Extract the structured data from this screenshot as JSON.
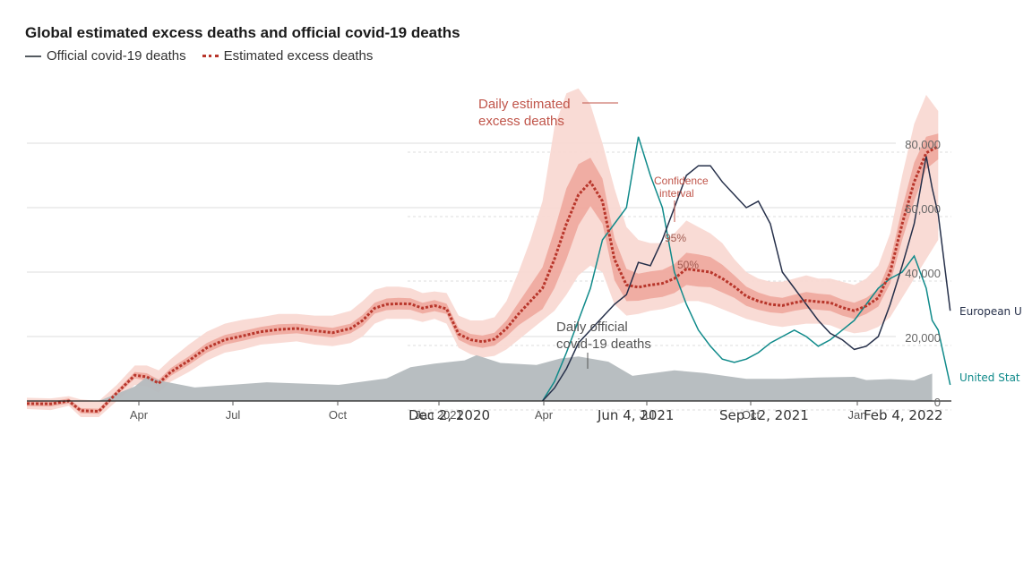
{
  "title": "Global estimated excess deaths and official covid-19 deaths",
  "legend": {
    "official": "Official covid-19 deaths",
    "excess": "Estimated excess deaths"
  },
  "colors": {
    "official_fill": "#b4babe",
    "excess_line": "#b8362b",
    "band95": "#f8d7d0",
    "band50": "#ec9d92",
    "eu_line": "#26304a",
    "us_line": "#0f8a8a"
  },
  "chart_data": {
    "type": "line",
    "title": "Global estimated excess deaths and official covid-19 deaths",
    "xlabel": "",
    "ylabel": "",
    "x_ticks": [
      "Apr",
      "Jul",
      "Oct",
      "Jan 2021",
      "Apr",
      "Jul",
      "Oct",
      "Jan"
    ],
    "y_ticks_right": [
      "0",
      "20,000",
      "40,000",
      "60,000",
      "80,000"
    ],
    "y_range": [
      0,
      85000
    ],
    "x_unit": "days since Jan 1 2020",
    "x_range": [
      0,
      771
    ],
    "official_global": {
      "name": "Official covid-19 deaths",
      "x": [
        0,
        60,
        90,
        100,
        115,
        140,
        200,
        260,
        300,
        320,
        340,
        365,
        375,
        395,
        425,
        445,
        460,
        485,
        505,
        540,
        565,
        600,
        630,
        660,
        690,
        700,
        720,
        740,
        755
      ],
      "values": [
        0,
        0,
        4500,
        7500,
        6000,
        4200,
        5800,
        5000,
        7000,
        10500,
        11600,
        12600,
        14200,
        11800,
        11200,
        13200,
        13800,
        12200,
        7800,
        9500,
        8700,
        6900,
        6900,
        7300,
        7500,
        6500,
        6800,
        6400,
        8500
      ]
    },
    "excess_estimate": {
      "name": "Estimated excess deaths",
      "x": [
        0,
        20,
        35,
        45,
        60,
        75,
        90,
        100,
        110,
        120,
        135,
        150,
        165,
        180,
        195,
        210,
        225,
        240,
        255,
        270,
        280,
        290,
        300,
        310,
        320,
        330,
        340,
        350,
        360,
        370,
        380,
        390,
        400,
        410,
        420,
        430,
        440,
        450,
        460,
        470,
        480,
        490,
        500,
        510,
        520,
        530,
        540,
        550,
        560,
        570,
        580,
        590,
        600,
        610,
        620,
        630,
        640,
        650,
        660,
        670,
        680,
        690,
        700,
        710,
        720,
        730,
        740,
        750,
        760
      ],
      "values": [
        -800,
        -900,
        0,
        -3000,
        -3200,
        2500,
        8000,
        7500,
        5500,
        9000,
        12500,
        16500,
        19000,
        20200,
        21500,
        22200,
        22500,
        21800,
        21200,
        22500,
        25000,
        28800,
        30000,
        30200,
        30100,
        28800,
        29600,
        28600,
        20800,
        19000,
        18400,
        19200,
        22500,
        27000,
        31000,
        35000,
        44000,
        55000,
        64000,
        68000,
        62000,
        44000,
        36000,
        35300,
        36000,
        36500,
        38000,
        41000,
        40500,
        40000,
        38000,
        35500,
        32500,
        31000,
        30000,
        29600,
        30500,
        31200,
        30800,
        30500,
        29000,
        28000,
        29500,
        32000,
        40000,
        55000,
        68000,
        77000,
        79000
      ]
    },
    "band95_upper": [
      1000,
      800,
      1500,
      500,
      0,
      5000,
      11000,
      11000,
      9500,
      13000,
      17500,
      21500,
      24000,
      25200,
      26000,
      27000,
      27000,
      26500,
      26500,
      28000,
      31000,
      34500,
      35500,
      35500,
      35000,
      33500,
      34000,
      33500,
      26500,
      25000,
      25000,
      26000,
      31000,
      40000,
      50000,
      62000,
      85000,
      95500,
      97000,
      92000,
      80000,
      66000,
      54000,
      50000,
      49000,
      49000,
      52000,
      56000,
      54000,
      52000,
      49000,
      44000,
      40000,
      38000,
      37000,
      37000,
      38000,
      39000,
      38000,
      38000,
      37000,
      36000,
      38000,
      42000,
      52000,
      70000,
      86000,
      95000,
      90000
    ],
    "band95_lower": [
      -2500,
      -2800,
      -1500,
      -5000,
      -5000,
      0,
      5000,
      4500,
      2500,
      6000,
      9000,
      12500,
      15000,
      16000,
      17500,
      18000,
      18500,
      17500,
      17000,
      18000,
      20000,
      24000,
      25500,
      25500,
      25500,
      24500,
      25500,
      24000,
      16500,
      14500,
      13500,
      14000,
      16000,
      19000,
      22000,
      25000,
      28000,
      33000,
      39000,
      42000,
      40000,
      30000,
      26500,
      27000,
      28000,
      28500,
      29500,
      31000,
      31000,
      30000,
      28500,
      27000,
      25500,
      24500,
      23500,
      23000,
      23500,
      24000,
      24000,
      23500,
      22000,
      21000,
      21500,
      23000,
      26000,
      32000,
      38000,
      44000,
      50000
    ],
    "band50_upper": [
      0,
      -200,
      800,
      -2200,
      -2400,
      3300,
      9000,
      8600,
      6600,
      10200,
      13800,
      18000,
      20500,
      21700,
      23000,
      23800,
      24000,
      23300,
      22700,
      24000,
      26700,
      30500,
      31800,
      32000,
      31900,
      30500,
      31300,
      30200,
      22600,
      20800,
      20300,
      21200,
      25000,
      30500,
      36000,
      41500,
      53000,
      66000,
      73500,
      75500,
      69000,
      50500,
      41000,
      39500,
      40200,
      40700,
      42500,
      46000,
      45500,
      44700,
      42300,
      39000,
      35500,
      33700,
      32500,
      32000,
      33000,
      33800,
      33300,
      33000,
      31500,
      30500,
      32000,
      34700,
      43500,
      60000,
      74000,
      82000,
      83000
    ],
    "band50_lower": [
      -1600,
      -1700,
      -800,
      -3800,
      -4000,
      1700,
      7000,
      6400,
      4400,
      7800,
      11200,
      15000,
      17500,
      18700,
      20000,
      20600,
      21000,
      20300,
      19700,
      21000,
      23300,
      27100,
      28200,
      28400,
      28300,
      27100,
      27900,
      27000,
      19000,
      17200,
      16500,
      17200,
      20000,
      23500,
      26000,
      28500,
      35000,
      44000,
      54500,
      60500,
      55000,
      37500,
      31000,
      31100,
      31800,
      32300,
      33500,
      36000,
      35500,
      35300,
      33700,
      32000,
      29500,
      28300,
      27500,
      27200,
      28000,
      28600,
      28300,
      28000,
      26500,
      25500,
      27000,
      29300,
      36500,
      50000,
      62000,
      72000,
      75000
    ],
    "eu_official": {
      "name": "European Union",
      "x": [
        430,
        440,
        450,
        460,
        470,
        480,
        490,
        500,
        510,
        520,
        530,
        540,
        550,
        560,
        570,
        580,
        590,
        600,
        610,
        620,
        630,
        640,
        650,
        660,
        670,
        680,
        690,
        700,
        710,
        720,
        730,
        740,
        750,
        755,
        760,
        770
      ],
      "values": [
        0,
        4000,
        10000,
        18000,
        22000,
        26000,
        30000,
        33000,
        43000,
        42000,
        50000,
        60000,
        70000,
        73000,
        73000,
        68000,
        64000,
        60000,
        62000,
        55000,
        40000,
        35000,
        30000,
        25000,
        21000,
        19000,
        16000,
        17000,
        20000,
        30000,
        42000,
        55000,
        76000,
        66000,
        58000,
        28000
      ]
    },
    "us_official": {
      "name": "United States",
      "x": [
        430,
        440,
        450,
        460,
        470,
        480,
        490,
        500,
        510,
        520,
        530,
        540,
        550,
        560,
        570,
        580,
        590,
        600,
        610,
        620,
        630,
        640,
        650,
        660,
        670,
        680,
        690,
        700,
        710,
        720,
        730,
        740,
        750,
        755,
        760,
        770
      ],
      "values": [
        0,
        6000,
        15000,
        25000,
        35000,
        50000,
        55000,
        60000,
        82000,
        70000,
        60000,
        40000,
        30000,
        22000,
        17000,
        13000,
        12000,
        13000,
        15000,
        18000,
        20000,
        22000,
        20000,
        17000,
        19000,
        22000,
        25000,
        30000,
        35000,
        38000,
        40000,
        45000,
        35000,
        25000,
        22000,
        5000
      ]
    }
  },
  "annotations": {
    "daily_excess_line1": "Daily estimated",
    "daily_excess_line2": "excess deaths",
    "confidence_line1": "Confidence",
    "confidence_line2": "interval",
    "pct95": "95%",
    "pct50": "50%",
    "daily_official_line1": "Daily official",
    "daily_official_line2": "covid-19 deaths"
  },
  "date_labels": [
    "Dec 2, 2020",
    "Jun 4, 2021",
    "Sep 12, 2021",
    "Feb 4, 2022"
  ],
  "series_labels": {
    "eu": "European U",
    "us": "United Stat"
  }
}
